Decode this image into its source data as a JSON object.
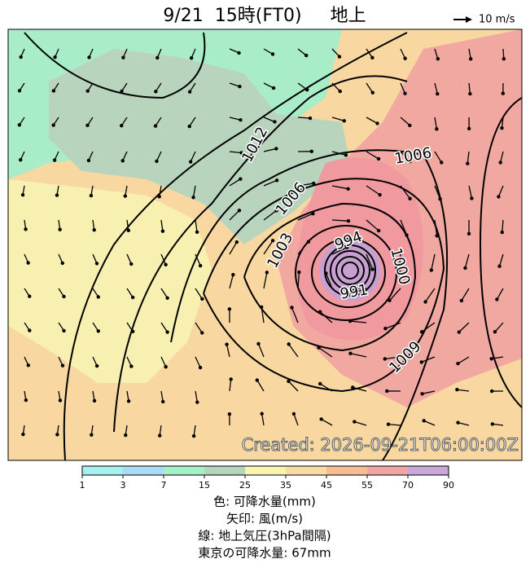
{
  "header": {
    "title": "9/21  15時(FT0)     地上",
    "wind_scale": "10 m/s"
  },
  "map": {
    "isobar_labels": [
      "1012",
      "1006",
      "1006",
      "1003",
      "994",
      "1000",
      "991",
      "1009"
    ],
    "created": "Created: 2026-09-21T06:00:00Z"
  },
  "colorbar": {
    "ticks": [
      "1",
      "3",
      "7",
      "15",
      "25",
      "35",
      "45",
      "55",
      "70",
      "90"
    ]
  },
  "legend": {
    "lines": [
      "色: 可降水量(mm)",
      "矢印: 風(m/s)",
      "線: 地上気圧(3hPa間隔)",
      "東京の可降水量: 67mm"
    ]
  }
}
